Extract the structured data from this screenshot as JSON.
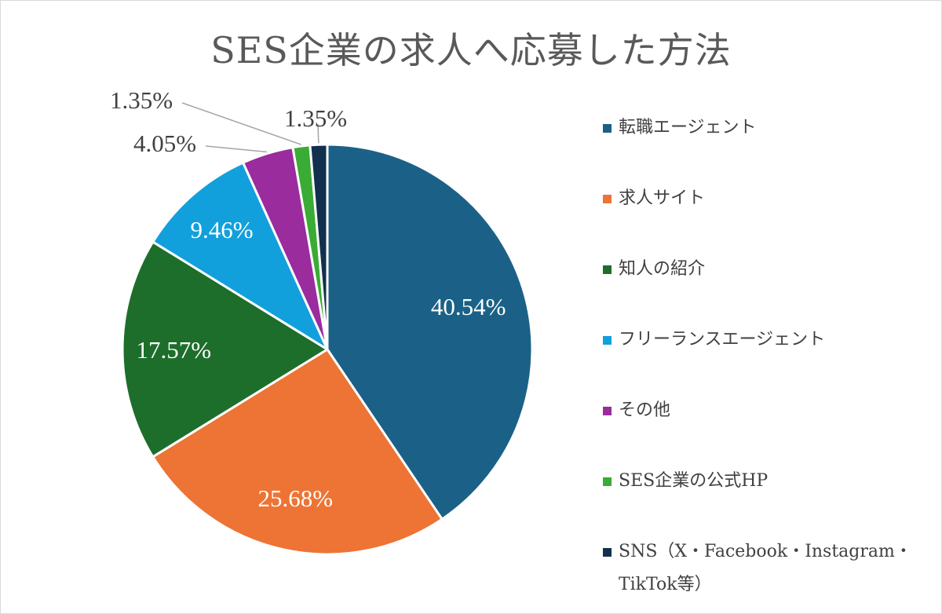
{
  "chart_data": {
    "type": "pie",
    "title": "SES企業の求人へ応募した方法",
    "categories": [
      "転職エージェント",
      "求人サイト",
      "知人の紹介",
      "フリーランスエージェント",
      "その他",
      "SES企業の公式HP",
      "SNS（X・Facebook・Instagram・TikTok等）"
    ],
    "values": [
      40.54,
      25.68,
      17.57,
      9.46,
      4.05,
      1.35,
      1.35
    ],
    "value_labels": [
      "40.54%",
      "25.68%",
      "17.57%",
      "9.46%",
      "4.05%",
      "1.35%",
      "1.35%"
    ],
    "colors": [
      "#1b6187",
      "#ed7434",
      "#1d6e2b",
      "#12a0dc",
      "#9a2c9e",
      "#3aab34",
      "#12304d"
    ],
    "label_colors": [
      "#ffffff",
      "#ffffff",
      "#ffffff",
      "#ffffff",
      "#404040",
      "#404040",
      "#404040"
    ],
    "start_angle": "12 o'clock",
    "direction": "clockwise",
    "legend": {
      "position": "right",
      "labels": [
        "転職エージェント",
        "求人サイト",
        "知人の紹介",
        "フリーランスエージェント",
        "その他",
        "SES企業の公式HP",
        "SNS（X・Facebook・Instagram・TikTok等）"
      ]
    }
  }
}
